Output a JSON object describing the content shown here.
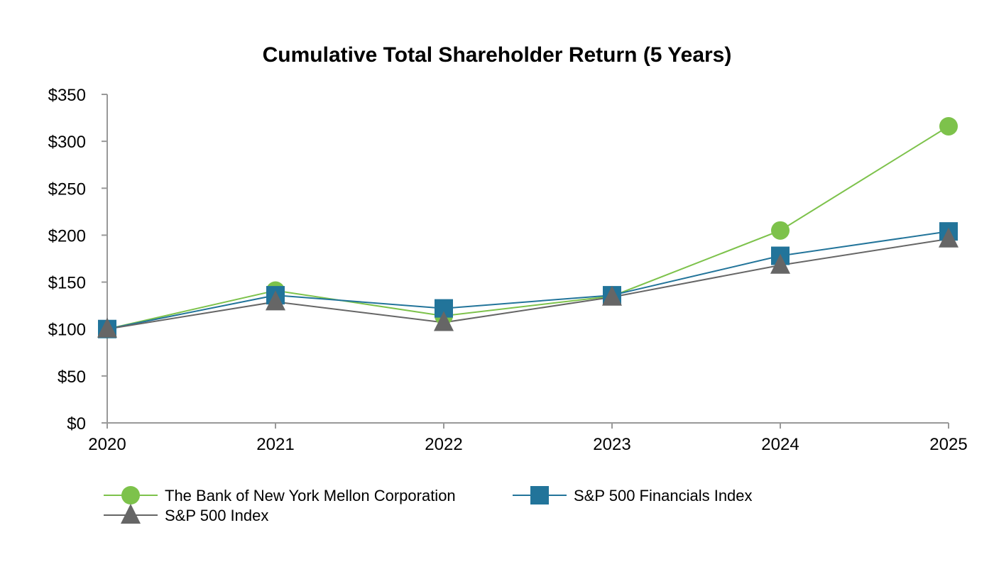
{
  "chart_data": {
    "type": "line",
    "title": "Cumulative Total Shareholder Return (5 Years)",
    "xlabel": "",
    "ylabel": "",
    "categories": [
      "2020",
      "2021",
      "2022",
      "2023",
      "2024",
      "2025"
    ],
    "ylim": [
      0,
      350
    ],
    "yticks": [
      0,
      50,
      100,
      150,
      200,
      250,
      300,
      350
    ],
    "ytick_labels": [
      "$0",
      "$50",
      "$100",
      "$150",
      "$200",
      "$250",
      "$300",
      "$350"
    ],
    "grid": false,
    "legend_position": "bottom",
    "series": [
      {
        "name": "The Bank of New York Mellon Corporation",
        "marker": "circle",
        "color": "#7dc24b",
        "values": [
          100,
          141,
          114,
          135,
          205,
          316
        ]
      },
      {
        "name": "S&P 500 Financials Index",
        "marker": "square",
        "color": "#22749a",
        "values": [
          100,
          136,
          122,
          136,
          178,
          204
        ]
      },
      {
        "name": "S&P 500 Index",
        "marker": "triangle",
        "color": "#666666",
        "values": [
          100,
          129,
          107,
          134,
          168,
          196
        ]
      }
    ]
  }
}
